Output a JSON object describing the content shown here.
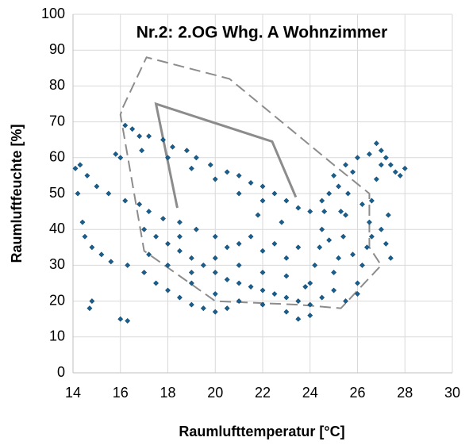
{
  "chart_data": {
    "type": "scatter",
    "title": "Nr.2: 2.OG Whg. A Wohnzimmer",
    "x_label": "Raumlufttemperatur [°C]",
    "y_label": "Raumluftfeuchte [%]",
    "xlim": [
      14,
      30
    ],
    "xticks": [
      14,
      16,
      18,
      20,
      22,
      24,
      26,
      28,
      30
    ],
    "ylim": [
      0,
      100
    ],
    "yticks": [
      0,
      10,
      20,
      30,
      40,
      50,
      60,
      70,
      80,
      90,
      100
    ],
    "grid": true,
    "series": [
      {
        "color": "#1a5f8e",
        "x": [
          14.1,
          14.3,
          14.6,
          15.0,
          15.5,
          16.0,
          15.8,
          16.2,
          16.8,
          17.2,
          17.8,
          18.5,
          19.2,
          20,
          21,
          22,
          23,
          14.2,
          14.4,
          14.5,
          14.8,
          15.2,
          15.6,
          16.3,
          17,
          17.5,
          18,
          18.5,
          19,
          19.5,
          20,
          20.5,
          16,
          16.3,
          14.8,
          14.7,
          16.2,
          16.5,
          16.8,
          17.2,
          17.8,
          18.2,
          18.8,
          19.2,
          19.8,
          20.5,
          21,
          21.5,
          22,
          22.5,
          23,
          23.5,
          24,
          16.9,
          18,
          19,
          20,
          21,
          22,
          17,
          17.5,
          18,
          18.5,
          19,
          19.5,
          20,
          20.5,
          21,
          21.5,
          22,
          22.5,
          23,
          23.5,
          24,
          18,
          19,
          20,
          21,
          22,
          23,
          19,
          20,
          21,
          22,
          23,
          23.5,
          24,
          17.2,
          18.5,
          20.5,
          21.5,
          22.5,
          23.5,
          22.8,
          21.8,
          24,
          24.2,
          24.4,
          24.5,
          24.6,
          24.8,
          25,
          25,
          25.2,
          25.4,
          25.5,
          25.6,
          25.8,
          26,
          26,
          26.2,
          26.4,
          26.5,
          26.6,
          26.8,
          27,
          27,
          27.2,
          27.4,
          27.6,
          27.8,
          28,
          27,
          27.2,
          27.4,
          27.3,
          26,
          25.5,
          25,
          24.5,
          23.8,
          24.5,
          25.5,
          26.5,
          26.8,
          25.2,
          24.8,
          25.8,
          26.6,
          25.3,
          26.2
        ],
        "values": [
          57,
          58,
          55,
          52,
          50,
          60,
          61,
          48,
          47,
          45,
          43,
          42,
          40,
          38,
          36,
          34,
          32,
          50,
          42,
          38,
          35,
          33,
          31,
          30,
          28,
          25,
          23,
          21,
          19,
          18,
          17,
          18,
          15,
          14.5,
          20,
          18,
          69,
          68,
          66,
          66,
          65,
          63,
          62,
          60,
          58,
          56,
          55,
          53,
          52,
          50,
          48,
          46,
          45,
          62,
          60,
          57,
          54,
          50,
          48,
          40,
          38,
          36,
          34,
          32,
          30,
          28,
          26,
          25,
          24,
          23,
          22,
          21,
          20,
          19,
          30,
          28,
          32,
          30,
          28,
          27,
          25,
          22,
          20,
          19,
          17,
          15,
          16,
          33,
          38,
          35,
          38,
          36,
          35,
          42,
          44,
          25,
          30,
          35,
          40,
          45,
          50,
          55,
          28,
          32,
          38,
          44,
          50,
          56,
          60,
          25,
          30,
          35,
          42,
          48,
          54,
          58,
          62,
          60,
          58,
          56,
          55,
          57,
          40,
          36,
          32,
          44,
          22,
          20,
          23,
          21,
          24,
          48,
          58,
          61,
          64,
          52,
          37,
          33,
          38,
          45,
          47
        ]
      }
    ],
    "lines": [
      {
        "style": "dashed",
        "color": "#8c8c8c",
        "x": [
          16.1,
          17.1,
          20.6,
          25,
          26.5,
          26.5,
          27,
          25.3,
          23.5,
          20,
          17,
          16,
          16.1
        ],
        "y": [
          74,
          88,
          82,
          58,
          50,
          35,
          30,
          18,
          19,
          20,
          34,
          72,
          74
        ]
      },
      {
        "style": "solid",
        "color": "#8c8c8c",
        "x": [
          18.4,
          17.5,
          22.4,
          23.4
        ],
        "y": [
          46,
          75,
          64.5,
          49
        ]
      }
    ]
  }
}
